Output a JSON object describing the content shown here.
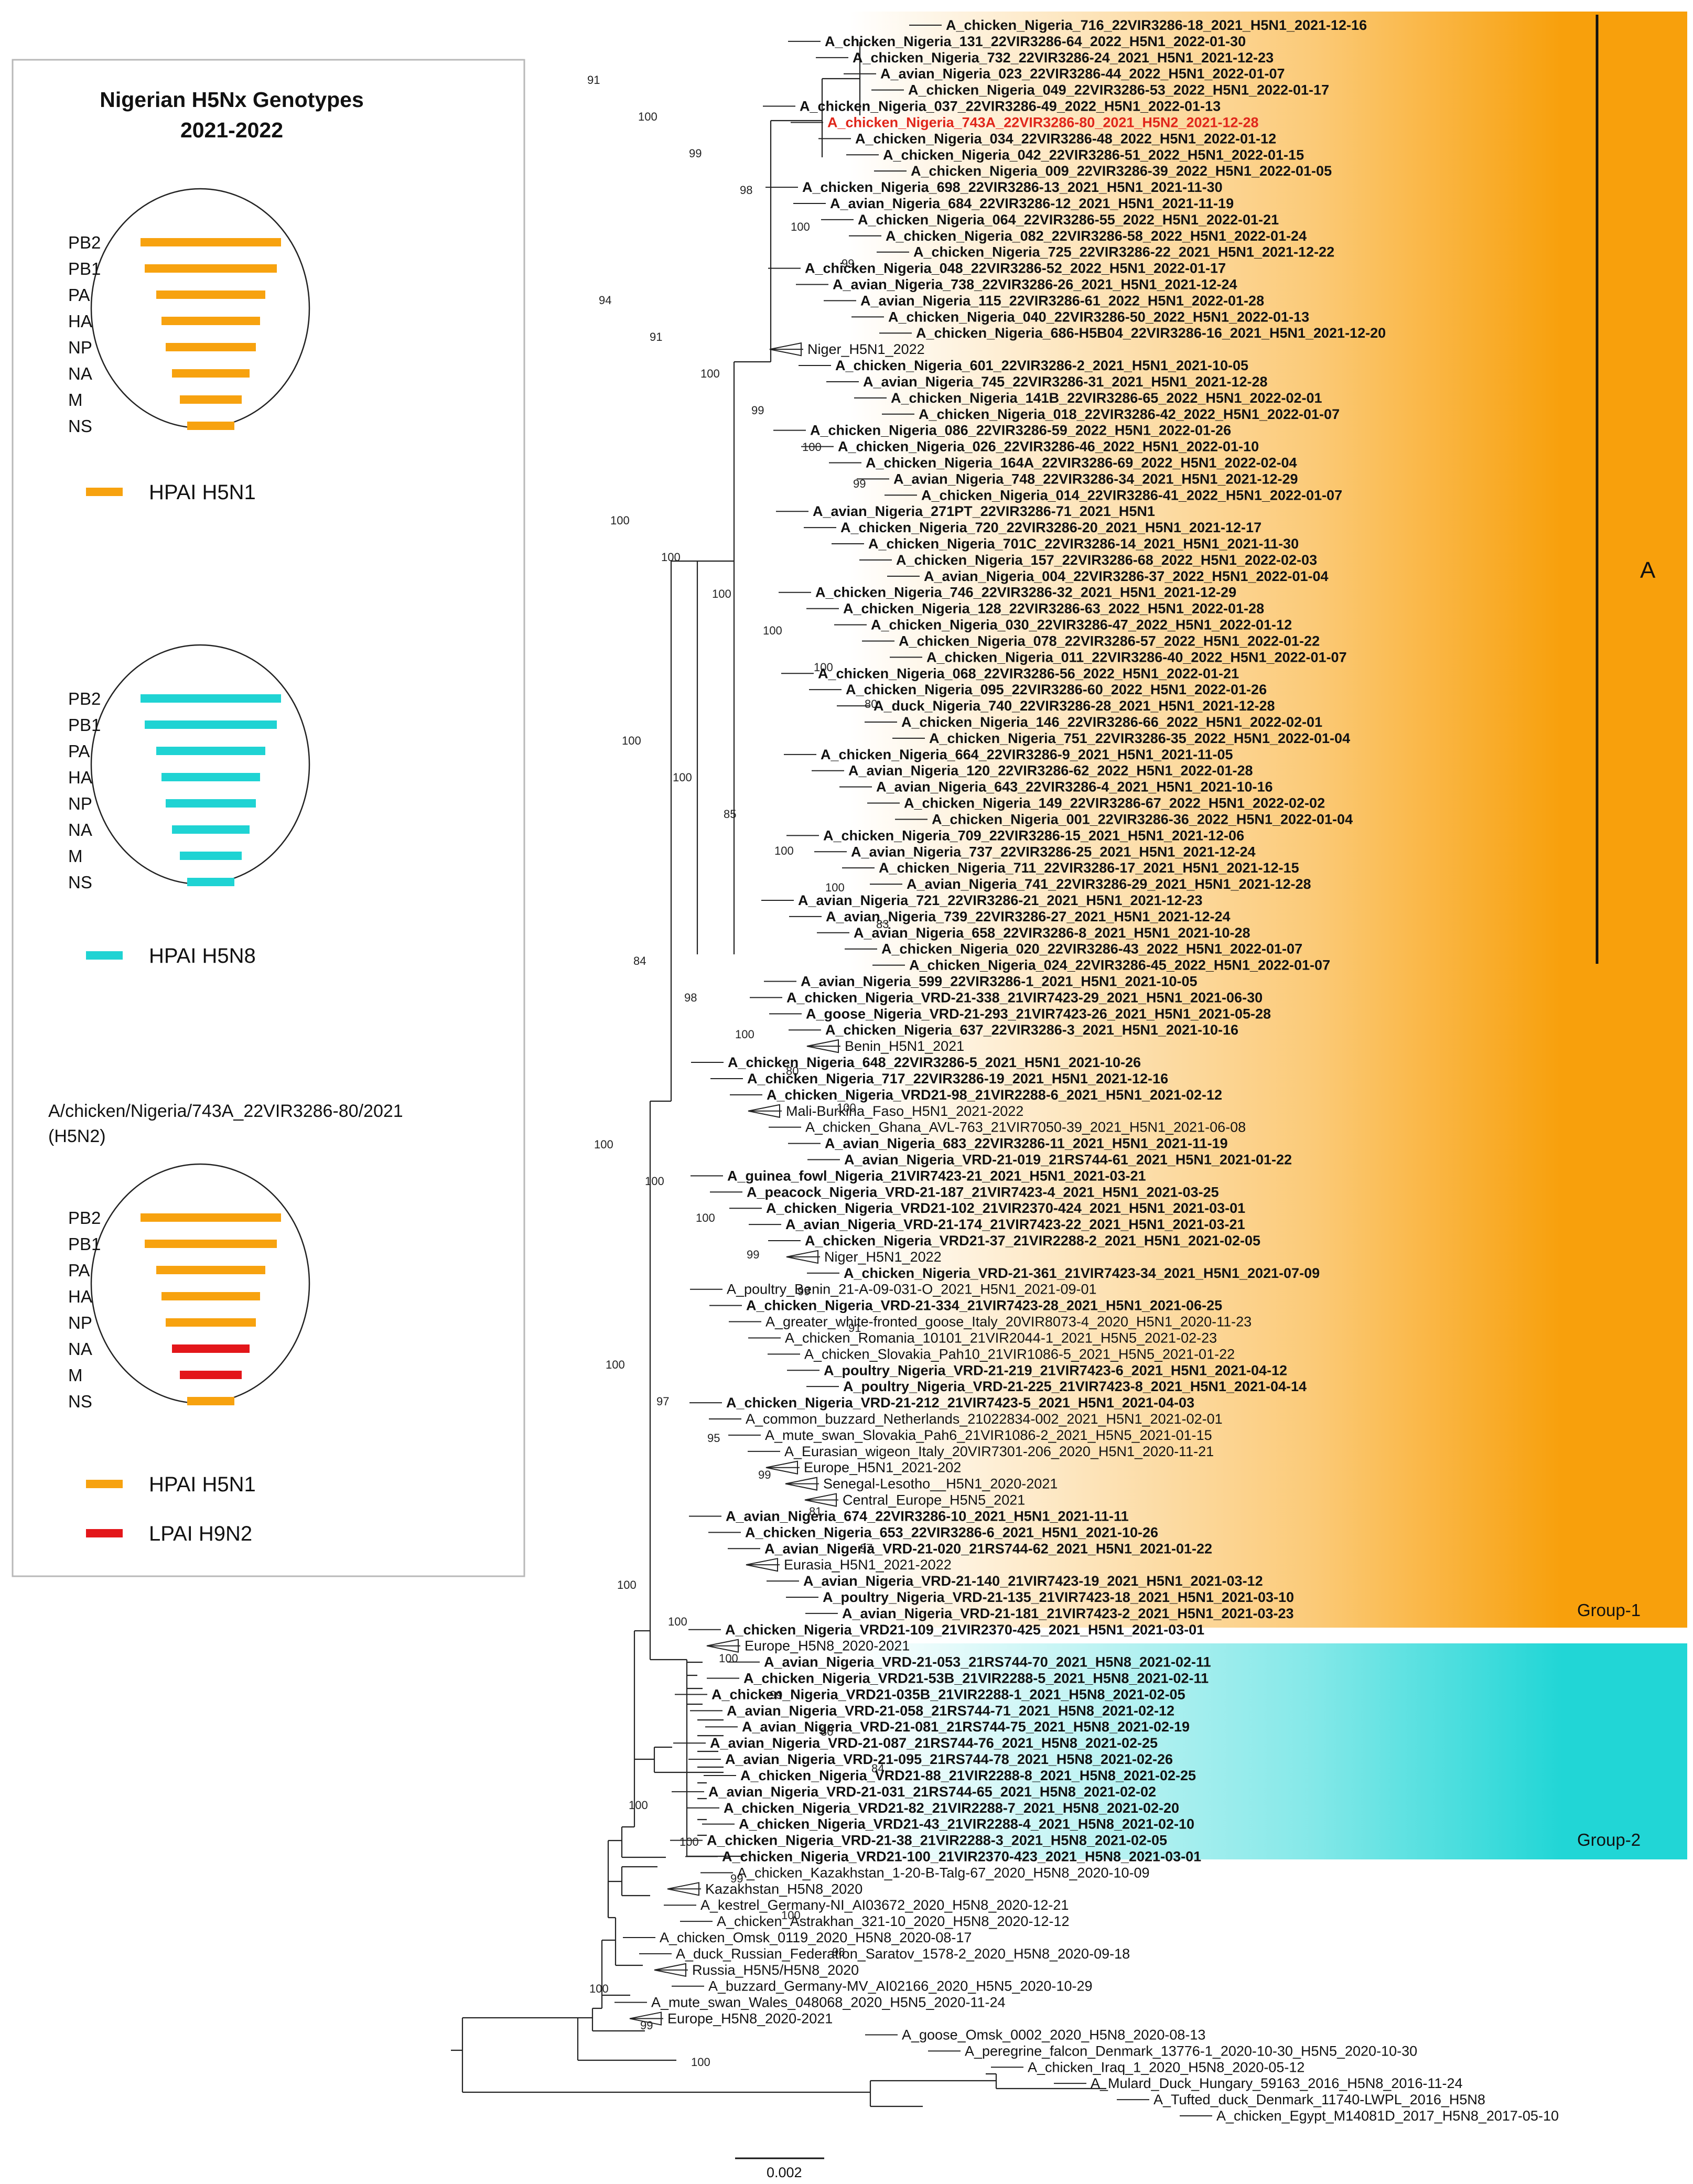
{
  "legend": {
    "title_line1": "Nigerian H5Nx Genotypes",
    "title_line2": "2021-2022",
    "segments": [
      "PB2",
      "PB1",
      "PA",
      "HA",
      "NP",
      "NA",
      "M",
      "NS"
    ],
    "panels": [
      {
        "caption": "",
        "colors": [
          "#f7a20f",
          "#f7a20f",
          "#f7a20f",
          "#f7a20f",
          "#f7a20f",
          "#f7a20f",
          "#f7a20f",
          "#f7a20f"
        ]
      },
      {
        "caption": "",
        "colors": [
          "#1fd3d3",
          "#1fd3d3",
          "#1fd3d3",
          "#1fd3d3",
          "#1fd3d3",
          "#1fd3d3",
          "#1fd3d3",
          "#1fd3d3"
        ]
      },
      {
        "caption": "A/chicken/Nigeria/743A_22VIR3286-80/2021 (H5N2)",
        "colors": [
          "#f7a20f",
          "#f7a20f",
          "#f7a20f",
          "#f7a20f",
          "#f7a20f",
          "#e3161a",
          "#e3161a",
          "#f7a20f"
        ]
      }
    ],
    "keys": {
      "panel1": [
        {
          "label": "HPAI H5N1",
          "color": "#f7a20f"
        }
      ],
      "panel2": [
        {
          "label": "HPAI H5N8",
          "color": "#1fd3d3"
        }
      ],
      "panel3": [
        {
          "label": "HPAI H5N1",
          "color": "#f7a20f"
        },
        {
          "label": "LPAI H9N2",
          "color": "#e3161a"
        }
      ]
    }
  },
  "tree": {
    "scale_label": "0.002",
    "group_labels": {
      "clade_a": "A",
      "group1": "Group-1",
      "group2": "Group-2"
    },
    "colors": {
      "group1_band": "#f8a00c",
      "group2_band": "#21d6d6",
      "highlight_text": "#e0261b"
    },
    "bootstrap": [
      "91",
      "100",
      "99",
      "98",
      "100",
      "99",
      "94",
      "91",
      "100",
      "99",
      "100",
      "99",
      "100",
      "100",
      "100",
      "100",
      "100",
      "80",
      "100",
      "100",
      "85",
      "100",
      "100",
      "83",
      "84",
      "98",
      "100",
      "80",
      "100",
      "100",
      "100",
      "100",
      "99",
      "99",
      "91",
      "100",
      "97",
      "95",
      "99",
      "81",
      "97",
      "100",
      "100",
      "100",
      "99",
      "80",
      "84",
      "100",
      "100",
      "99",
      "100",
      "98",
      "100",
      "99",
      "100"
    ],
    "leaves": [
      {
        "label": "A_chicken_Nigeria_716_22VIR3286-18_2021_H5N1_2021-12-16",
        "style": "bold"
      },
      {
        "label": "A_chicken_Nigeria_131_22VIR3286-64_2022_H5N1_2022-01-30",
        "style": "bold"
      },
      {
        "label": "A_chicken_Nigeria_732_22VIR3286-24_2021_H5N1_2021-12-23",
        "style": "bold"
      },
      {
        "label": "A_avian_Nigeria_023_22VIR3286-44_2022_H5N1_2022-01-07",
        "style": "bold"
      },
      {
        "label": "A_chicken_Nigeria_049_22VIR3286-53_2022_H5N1_2022-01-17",
        "style": "bold"
      },
      {
        "label": "A_chicken_Nigeria_037_22VIR3286-49_2022_H5N1_2022-01-13",
        "style": "bold"
      },
      {
        "label": "A_chicken_Nigeria_743A_22VIR3286-80_2021_H5N2_2021-12-28",
        "style": "red"
      },
      {
        "label": "A_chicken_Nigeria_034_22VIR3286-48_2022_H5N1_2022-01-12",
        "style": "bold"
      },
      {
        "label": "A_chicken_Nigeria_042_22VIR3286-51_2022_H5N1_2022-01-15",
        "style": "bold"
      },
      {
        "label": "A_chicken_Nigeria_009_22VIR3286-39_2022_H5N1_2022-01-05",
        "style": "bold"
      },
      {
        "label": "A_chicken_Nigeria_698_22VIR3286-13_2021_H5N1_2021-11-30",
        "style": "bold"
      },
      {
        "label": "A_avian_Nigeria_684_22VIR3286-12_2021_H5N1_2021-11-19",
        "style": "bold"
      },
      {
        "label": "A_chicken_Nigeria_064_22VIR3286-55_2022_H5N1_2022-01-21",
        "style": "bold"
      },
      {
        "label": "A_chicken_Nigeria_082_22VIR3286-58_2022_H5N1_2022-01-24",
        "style": "bold"
      },
      {
        "label": "A_chicken_Nigeria_725_22VIR3286-22_2021_H5N1_2021-12-22",
        "style": "bold"
      },
      {
        "label": "A_chicken_Nigeria_048_22VIR3286-52_2022_H5N1_2022-01-17",
        "style": "bold"
      },
      {
        "label": "A_avian_Nigeria_738_22VIR3286-26_2021_H5N1_2021-12-24",
        "style": "bold"
      },
      {
        "label": "A_avian_Nigeria_115_22VIR3286-61_2022_H5N1_2022-01-28",
        "style": "bold"
      },
      {
        "label": "A_chicken_Nigeria_040_22VIR3286-50_2022_H5N1_2022-01-13",
        "style": "bold"
      },
      {
        "label": "A_chicken_Nigeria_686-H5B04_22VIR3286-16_2021_H5N1_2021-12-20",
        "style": "bold"
      },
      {
        "label": "Niger_H5N1_2022",
        "style": "normal",
        "collapsed": true
      },
      {
        "label": "A_chicken_Nigeria_601_22VIR3286-2_2021_H5N1_2021-10-05",
        "style": "bold"
      },
      {
        "label": "A_avian_Nigeria_745_22VIR3286-31_2021_H5N1_2021-12-28",
        "style": "bold"
      },
      {
        "label": "A_chicken_Nigeria_141B_22VIR3286-65_2022_H5N1_2022-02-01",
        "style": "bold"
      },
      {
        "label": "A_chicken_Nigeria_018_22VIR3286-42_2022_H5N1_2022-01-07",
        "style": "bold"
      },
      {
        "label": "A_chicken_Nigeria_086_22VIR3286-59_2022_H5N1_2022-01-26",
        "style": "bold"
      },
      {
        "label": "A_chicken_Nigeria_026_22VIR3286-46_2022_H5N1_2022-01-10",
        "style": "bold"
      },
      {
        "label": "A_chicken_Nigeria_164A_22VIR3286-69_2022_H5N1_2022-02-04",
        "style": "bold"
      },
      {
        "label": "A_avian_Nigeria_748_22VIR3286-34_2021_H5N1_2021-12-29",
        "style": "bold"
      },
      {
        "label": "A_chicken_Nigeria_014_22VIR3286-41_2022_H5N1_2022-01-07",
        "style": "bold"
      },
      {
        "label": "A_avian_Nigeria_271PT_22VIR3286-71_2021_H5N1",
        "style": "bold"
      },
      {
        "label": "A_chicken_Nigeria_720_22VIR3286-20_2021_H5N1_2021-12-17",
        "style": "bold"
      },
      {
        "label": "A_chicken_Nigeria_701C_22VIR3286-14_2021_H5N1_2021-11-30",
        "style": "bold"
      },
      {
        "label": "A_chicken_Nigeria_157_22VIR3286-68_2022_H5N1_2022-02-03",
        "style": "bold"
      },
      {
        "label": "A_avian_Nigeria_004_22VIR3286-37_2022_H5N1_2022-01-04",
        "style": "bold"
      },
      {
        "label": "A_chicken_Nigeria_746_22VIR3286-32_2021_H5N1_2021-12-29",
        "style": "bold"
      },
      {
        "label": "A_chicken_Nigeria_128_22VIR3286-63_2022_H5N1_2022-01-28",
        "style": "bold"
      },
      {
        "label": "A_chicken_Nigeria_030_22VIR3286-47_2022_H5N1_2022-01-12",
        "style": "bold"
      },
      {
        "label": "A_chicken_Nigeria_078_22VIR3286-57_2022_H5N1_2022-01-22",
        "style": "bold"
      },
      {
        "label": "A_chicken_Nigeria_011_22VIR3286-40_2022_H5N1_2022-01-07",
        "style": "bold"
      },
      {
        "label": "A_chicken_Nigeria_068_22VIR3286-56_2022_H5N1_2022-01-21",
        "style": "bold"
      },
      {
        "label": "A_chicken_Nigeria_095_22VIR3286-60_2022_H5N1_2022-01-26",
        "style": "bold"
      },
      {
        "label": "A_duck_Nigeria_740_22VIR3286-28_2021_H5N1_2021-12-28",
        "style": "bold"
      },
      {
        "label": "A_chicken_Nigeria_146_22VIR3286-66_2022_H5N1_2022-02-01",
        "style": "bold"
      },
      {
        "label": "A_chicken_Nigeria_751_22VIR3286-35_2022_H5N1_2022-01-04",
        "style": "bold"
      },
      {
        "label": "A_chicken_Nigeria_664_22VIR3286-9_2021_H5N1_2021-11-05",
        "style": "bold"
      },
      {
        "label": "A_avian_Nigeria_120_22VIR3286-62_2022_H5N1_2022-01-28",
        "style": "bold"
      },
      {
        "label": "A_avian_Nigeria_643_22VIR3286-4_2021_H5N1_2021-10-16",
        "style": "bold"
      },
      {
        "label": "A_chicken_Nigeria_149_22VIR3286-67_2022_H5N1_2022-02-02",
        "style": "bold"
      },
      {
        "label": "A_chicken_Nigeria_001_22VIR3286-36_2022_H5N1_2022-01-04",
        "style": "bold"
      },
      {
        "label": "A_chicken_Nigeria_709_22VIR3286-15_2021_H5N1_2021-12-06",
        "style": "bold"
      },
      {
        "label": "A_avian_Nigeria_737_22VIR3286-25_2021_H5N1_2021-12-24",
        "style": "bold"
      },
      {
        "label": "A_chicken_Nigeria_711_22VIR3286-17_2021_H5N1_2021-12-15",
        "style": "bold"
      },
      {
        "label": "A_avian_Nigeria_741_22VIR3286-29_2021_H5N1_2021-12-28",
        "style": "bold"
      },
      {
        "label": "A_avian_Nigeria_721_22VIR3286-21_2021_H5N1_2021-12-23",
        "style": "bold"
      },
      {
        "label": "A_avian_Nigeria_739_22VIR3286-27_2021_H5N1_2021-12-24",
        "style": "bold"
      },
      {
        "label": "A_avian_Nigeria_658_22VIR3286-8_2021_H5N1_2021-10-28",
        "style": "bold"
      },
      {
        "label": "A_chicken_Nigeria_020_22VIR3286-43_2022_H5N1_2022-01-07",
        "style": "bold"
      },
      {
        "label": "A_chicken_Nigeria_024_22VIR3286-45_2022_H5N1_2022-01-07",
        "style": "bold"
      },
      {
        "label": "A_avian_Nigeria_599_22VIR3286-1_2021_H5N1_2021-10-05",
        "style": "bold"
      },
      {
        "label": "A_chicken_Nigeria_VRD-21-338_21VIR7423-29_2021_H5N1_2021-06-30",
        "style": "bold"
      },
      {
        "label": "A_goose_Nigeria_VRD-21-293_21VIR7423-26_2021_H5N1_2021-05-28",
        "style": "bold"
      },
      {
        "label": "A_chicken_Nigeria_637_22VIR3286-3_2021_H5N1_2021-10-16",
        "style": "bold"
      },
      {
        "label": "Benin_H5N1_2021",
        "style": "normal",
        "collapsed": true
      },
      {
        "label": "A_chicken_Nigeria_648_22VIR3286-5_2021_H5N1_2021-10-26",
        "style": "bold"
      },
      {
        "label": "A_chicken_Nigeria_717_22VIR3286-19_2021_H5N1_2021-12-16",
        "style": "bold"
      },
      {
        "label": "A_chicken_Nigeria_VRD21-98_21VIR2288-6_2021_H5N1_2021-02-12",
        "style": "bold"
      },
      {
        "label": "Mali-Burkina_Faso_H5N1_2021-2022",
        "style": "normal",
        "collapsed": true
      },
      {
        "label": "A_chicken_Ghana_AVL-763_21VIR7050-39_2021_H5N1_2021-06-08",
        "style": "normal"
      },
      {
        "label": "A_avian_Nigeria_683_22VIR3286-11_2021_H5N1_2021-11-19",
        "style": "bold"
      },
      {
        "label": "A_avian_Nigeria_VRD-21-019_21RS744-61_2021_H5N1_2021-01-22",
        "style": "bold"
      },
      {
        "label": "A_guinea_fowl_Nigeria_21VIR7423-21_2021_H5N1_2021-03-21",
        "style": "bold"
      },
      {
        "label": "A_peacock_Nigeria_VRD-21-187_21VIR7423-4_2021_H5N1_2021-03-25",
        "style": "bold"
      },
      {
        "label": "A_chicken_Nigeria_VRD21-102_21VIR2370-424_2021_H5N1_2021-03-01",
        "style": "bold"
      },
      {
        "label": "A_avian_Nigeria_VRD-21-174_21VIR7423-22_2021_H5N1_2021-03-21",
        "style": "bold"
      },
      {
        "label": "A_chicken_Nigeria_VRD21-37_21VIR2288-2_2021_H5N1_2021-02-05",
        "style": "bold"
      },
      {
        "label": "Niger_H5N1_2022",
        "style": "normal",
        "collapsed": true
      },
      {
        "label": "A_chicken_Nigeria_VRD-21-361_21VIR7423-34_2021_H5N1_2021-07-09",
        "style": "bold"
      },
      {
        "label": "A_poultry_Benin_21-A-09-031-O_2021_H5N1_2021-09-01",
        "style": "normal"
      },
      {
        "label": "A_chicken_Nigeria_VRD-21-334_21VIR7423-28_2021_H5N1_2021-06-25",
        "style": "bold"
      },
      {
        "label": "A_greater_white-fronted_goose_Italy_20VIR8073-4_2020_H5N1_2020-11-23",
        "style": "normal"
      },
      {
        "label": "A_chicken_Romania_10101_21VIR2044-1_2021_H5N5_2021-02-23",
        "style": "normal"
      },
      {
        "label": "A_chicken_Slovakia_Pah10_21VIR1086-5_2021_H5N5_2021-01-22",
        "style": "normal"
      },
      {
        "label": "A_poultry_Nigeria_VRD-21-219_21VIR7423-6_2021_H5N1_2021-04-12",
        "style": "bold"
      },
      {
        "label": "A_poultry_Nigeria_VRD-21-225_21VIR7423-8_2021_H5N1_2021-04-14",
        "style": "bold"
      },
      {
        "label": "A_chicken_Nigeria_VRD-21-212_21VIR7423-5_2021_H5N1_2021-04-03",
        "style": "bold"
      },
      {
        "label": "A_common_buzzard_Netherlands_21022834-002_2021_H5N1_2021-02-01",
        "style": "normal"
      },
      {
        "label": "A_mute_swan_Slovakia_Pah6_21VIR1086-2_2021_H5N5_2021-01-15",
        "style": "normal"
      },
      {
        "label": "A_Eurasian_wigeon_Italy_20VIR7301-206_2020_H5N1_2020-11-21",
        "style": "normal"
      },
      {
        "label": "Europe_H5N1_2021-202",
        "style": "normal",
        "collapsed": true
      },
      {
        "label": "Senegal-Lesotho__H5N1_2020-2021",
        "style": "normal",
        "collapsed": true
      },
      {
        "label": "Central_Europe_H5N5_2021",
        "style": "normal",
        "collapsed": true
      },
      {
        "label": "A_avian_Nigeria_674_22VIR3286-10_2021_H5N1_2021-11-11",
        "style": "bold"
      },
      {
        "label": "A_chicken_Nigeria_653_22VIR3286-6_2021_H5N1_2021-10-26",
        "style": "bold"
      },
      {
        "label": "A_avian_Nigeria_VRD-21-020_21RS744-62_2021_H5N1_2021-01-22",
        "style": "bold"
      },
      {
        "label": "Eurasia_H5N1_2021-2022",
        "style": "normal",
        "collapsed": true
      },
      {
        "label": "A_avian_Nigeria_VRD-21-140_21VIR7423-19_2021_H5N1_2021-03-12",
        "style": "bold"
      },
      {
        "label": "A_poultry_Nigeria_VRD-21-135_21VIR7423-18_2021_H5N1_2021-03-10",
        "style": "bold"
      },
      {
        "label": "A_avian_Nigeria_VRD-21-181_21VIR7423-2_2021_H5N1_2021-03-23",
        "style": "bold"
      },
      {
        "label": "A_chicken_Nigeria_VRD21-109_21VIR2370-425_2021_H5N1_2021-03-01",
        "style": "bold"
      },
      {
        "label": "Europe_H5N8_2020-2021",
        "style": "normal",
        "collapsed": true
      },
      {
        "label": "A_avian_Nigeria_VRD-21-053_21RS744-70_2021_H5N8_2021-02-11",
        "style": "bold"
      },
      {
        "label": "A_chicken_Nigeria_VRD21-53B_21VIR2288-5_2021_H5N8_2021-02-11",
        "style": "bold"
      },
      {
        "label": "A_chicken_Nigeria_VRD21-035B_21VIR2288-1_2021_H5N8_2021-02-05",
        "style": "bold"
      },
      {
        "label": "A_avian_Nigeria_VRD-21-058_21RS744-71_2021_H5N8_2021-02-12",
        "style": "bold"
      },
      {
        "label": "A_avian_Nigeria_VRD-21-081_21RS744-75_2021_H5N8_2021-02-19",
        "style": "bold"
      },
      {
        "label": "A_avian_Nigeria_VRD-21-087_21RS744-76_2021_H5N8_2021-02-25",
        "style": "bold"
      },
      {
        "label": "A_avian_Nigeria_VRD-21-095_21RS744-78_2021_H5N8_2021-02-26",
        "style": "bold"
      },
      {
        "label": "A_chicken_Nigeria_VRD21-88_21VIR2288-8_2021_H5N8_2021-02-25",
        "style": "bold"
      },
      {
        "label": "A_avian_Nigeria_VRD-21-031_21RS744-65_2021_H5N8_2021-02-02",
        "style": "bold"
      },
      {
        "label": "A_chicken_Nigeria_VRD21-82_21VIR2288-7_2021_H5N8_2021-02-20",
        "style": "bold"
      },
      {
        "label": "A_chicken_Nigeria_VRD21-43_21VIR2288-4_2021_H5N8_2021-02-10",
        "style": "bold"
      },
      {
        "label": "A_chicken_Nigeria_VRD-21-38_21VIR2288-3_2021_H5N8_2021-02-05",
        "style": "bold"
      },
      {
        "label": "A_chicken_Nigeria_VRD21-100_21VIR2370-423_2021_H5N8_2021-03-01",
        "style": "bold"
      },
      {
        "label": "A_chicken_Kazakhstan_1-20-B-Talg-67_2020_H5N8_2020-10-09",
        "style": "normal"
      },
      {
        "label": "Kazakhstan_H5N8_2020",
        "style": "normal",
        "collapsed": true
      },
      {
        "label": "A_kestrel_Germany-NI_AI03672_2020_H5N8_2020-12-21",
        "style": "normal"
      },
      {
        "label": "A_chicken_Astrakhan_321-10_2020_H5N8_2020-12-12",
        "style": "normal"
      },
      {
        "label": "A_chicken_Omsk_0119_2020_H5N8_2020-08-17",
        "style": "normal"
      },
      {
        "label": "A_duck_Russian_Federation_Saratov_1578-2_2020_H5N8_2020-09-18",
        "style": "normal"
      },
      {
        "label": "Russia_H5N5/H5N8_2020",
        "style": "normal",
        "collapsed": true
      },
      {
        "label": "A_buzzard_Germany-MV_AI02166_2020_H5N5_2020-10-29",
        "style": "normal"
      },
      {
        "label": "A_mute_swan_Wales_048068_2020_H5N5_2020-11-24",
        "style": "normal"
      },
      {
        "label": "Europe_H5N8_2020-2021",
        "style": "normal",
        "collapsed": true
      },
      {
        "label": "A_goose_Omsk_0002_2020_H5N8_2020-08-13",
        "style": "normal"
      },
      {
        "label": "A_peregrine_falcon_Denmark_13776-1_2020-10-30_H5N5_2020-10-30",
        "style": "normal"
      },
      {
        "label": "A_chicken_Iraq_1_2020_H5N8_2020-05-12",
        "style": "normal"
      },
      {
        "label": "A_Mulard_Duck_Hungary_59163_2016_H5N8_2016-11-24",
        "style": "normal"
      },
      {
        "label": "A_Tufted_duck_Denmark_11740-LWPL_2016_H5N8",
        "style": "normal"
      },
      {
        "label": "A_chicken_Egypt_M14081D_2017_H5N8_2017-05-10",
        "style": "normal"
      }
    ]
  }
}
